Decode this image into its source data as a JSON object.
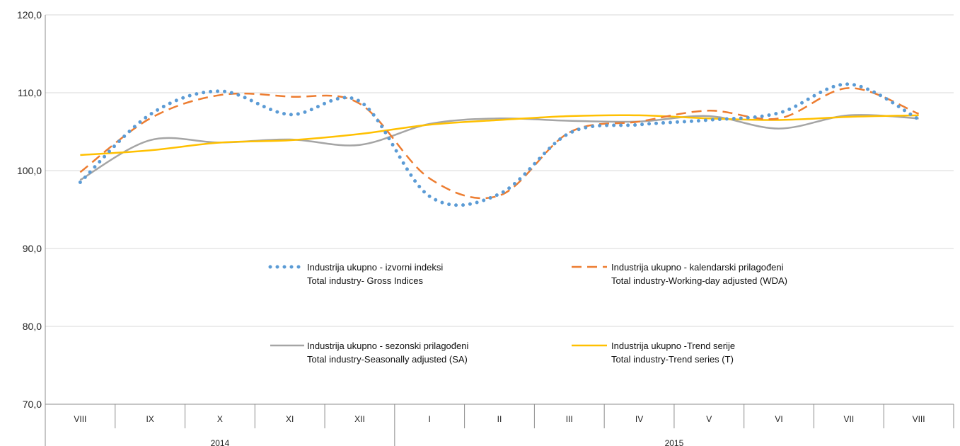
{
  "chart_data": {
    "type": "line",
    "title": "",
    "xlabel": "",
    "ylabel": "",
    "ylim": [
      70,
      120
    ],
    "yticks": [
      "70,0",
      "80,0",
      "90,0",
      "100,0",
      "110,0",
      "120,0"
    ],
    "grid": true,
    "categories": [
      "VIII",
      "IX",
      "X",
      "XI",
      "XII",
      "I",
      "II",
      "III",
      "IV",
      "V",
      "VI",
      "VII",
      "VIII"
    ],
    "years": [
      {
        "label": "2014",
        "from": 0,
        "to": 4
      },
      {
        "label": "2015",
        "from": 5,
        "to": 12
      }
    ],
    "series": [
      {
        "name_line1": "Industrija ukupno - izvorni indeksi",
        "name_line2": "Total industry- Gross Indices",
        "color": "#5b9bd5",
        "style": "dotted",
        "values": [
          98.5,
          107.2,
          110.2,
          107.2,
          108.9,
          96.7,
          97.0,
          104.8,
          105.9,
          106.5,
          107.4,
          111.1,
          106.6
        ]
      },
      {
        "name_line1": "Industrija ukupno - kalendarski prilagođeni",
        "name_line2": "Total industry-Working-day adjusted (WDA)",
        "color": "#ed7d31",
        "style": "dashed",
        "values": [
          99.8,
          106.7,
          109.7,
          109.5,
          108.6,
          99.0,
          96.8,
          104.9,
          106.3,
          107.7,
          106.7,
          110.6,
          107.3
        ]
      },
      {
        "name_line1": "Industrija ukupno - sezonski prilagođeni",
        "name_line2": "Total industry-Seasonally adjusted (SA)",
        "color": "#a5a5a5",
        "style": "solid",
        "values": [
          98.8,
          103.9,
          103.6,
          104.0,
          103.3,
          106.0,
          106.7,
          106.4,
          106.3,
          107.0,
          105.4,
          107.1,
          106.7
        ]
      },
      {
        "name_line1": "Industrija ukupno -Trend serije",
        "name_line2": "Total industry-Trend series (T)",
        "color": "#ffc000",
        "style": "solid",
        "values": [
          102.0,
          102.6,
          103.6,
          103.9,
          104.7,
          105.9,
          106.5,
          107.0,
          107.1,
          106.7,
          106.5,
          106.9,
          107.1
        ]
      }
    ],
    "legend": "inside-center"
  }
}
